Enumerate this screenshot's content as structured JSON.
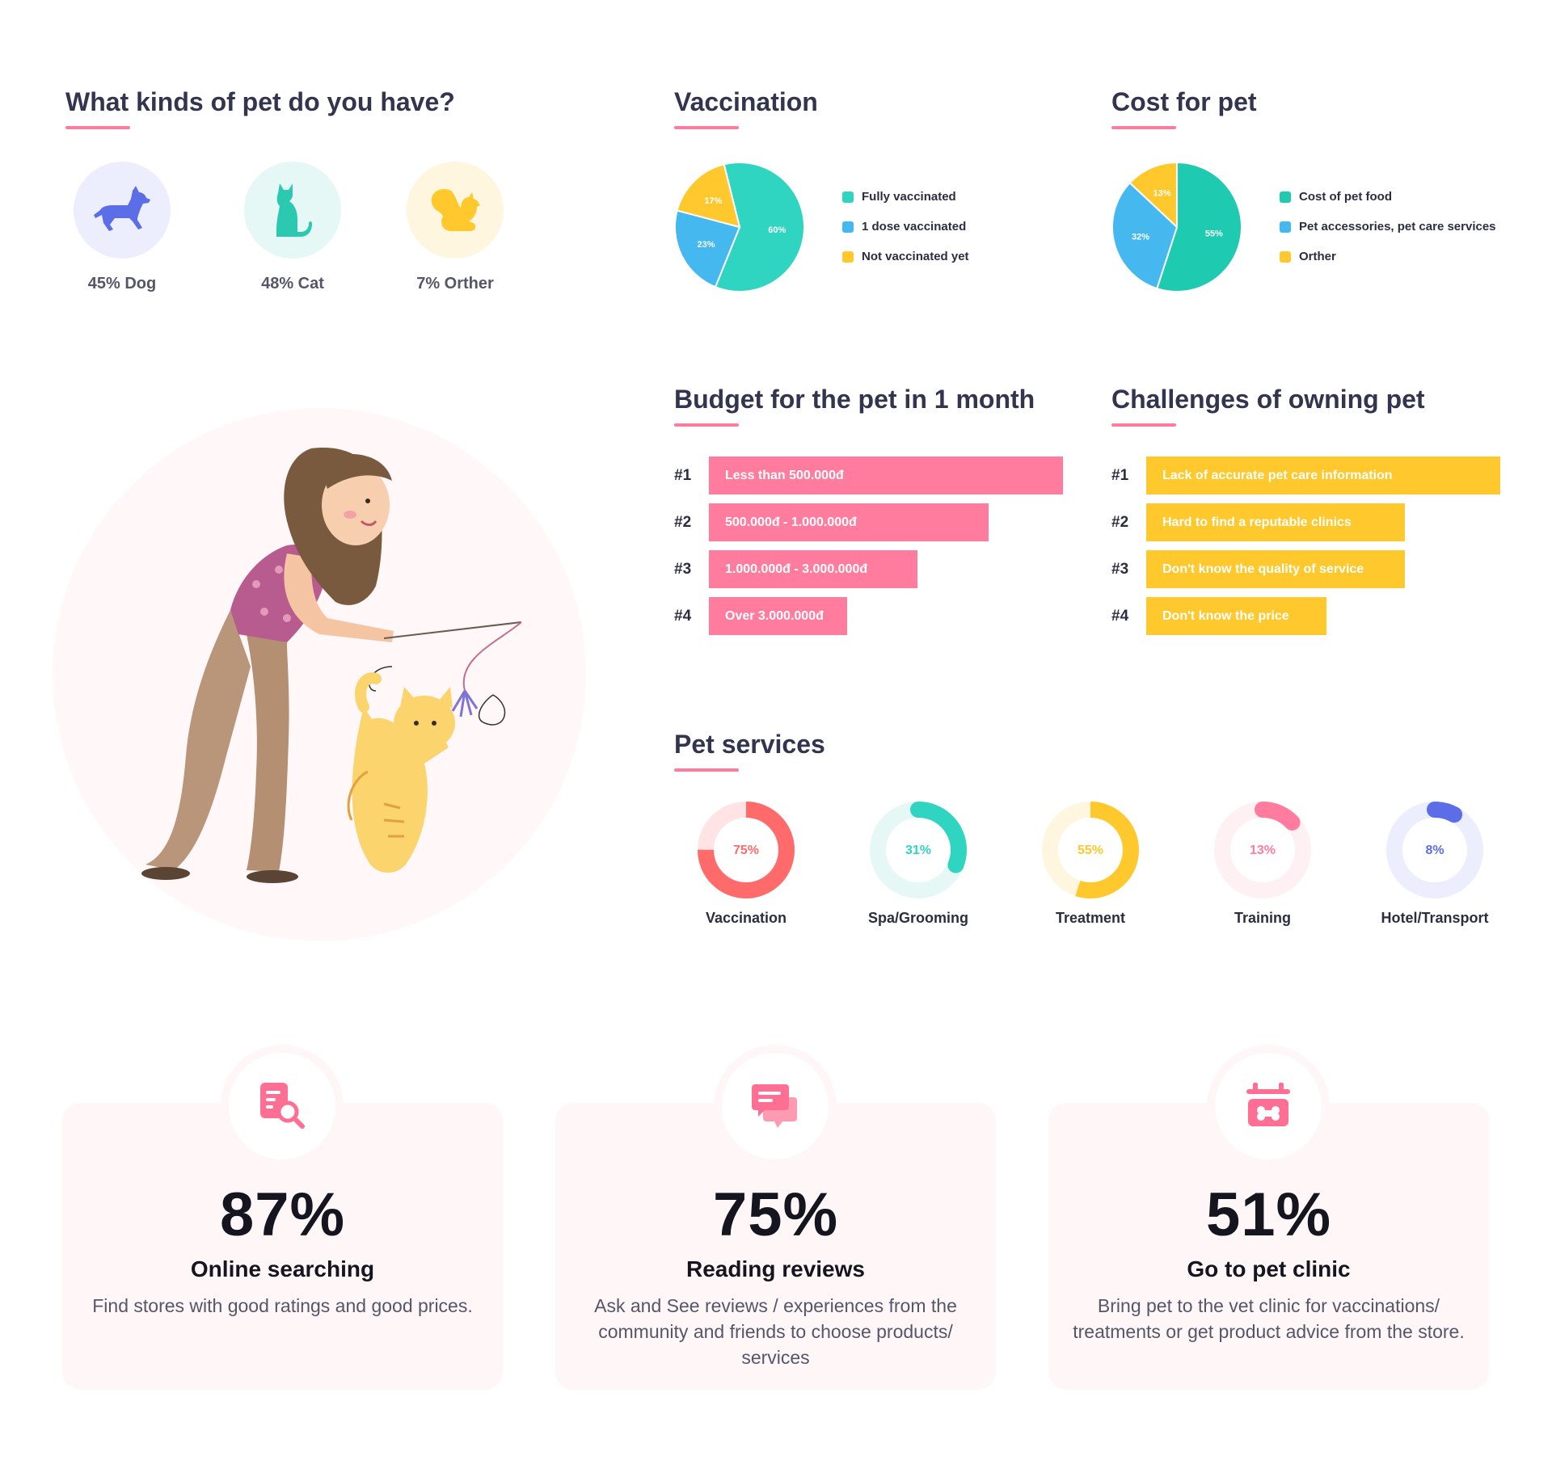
{
  "pet_kinds": {
    "title": "What kinds of pet do you have?",
    "items": [
      {
        "label": "45% Dog",
        "icon": "dog-icon",
        "bg": "#eceefe",
        "color": "#5b6ee8"
      },
      {
        "label": "48% Cat",
        "icon": "cat-icon",
        "bg": "#e6f8f5",
        "color": "#2ac9b0"
      },
      {
        "label": "7% Orther",
        "icon": "squirrel-icon",
        "bg": "#fff6df",
        "color": "#ffc82c"
      }
    ]
  },
  "vaccination": {
    "title": "Vaccination",
    "legend": [
      "Fully vaccinated",
      "1 dose vaccinated",
      "Not vaccinated yet"
    ]
  },
  "cost": {
    "title": "Cost for pet",
    "legend": [
      "Cost of pet food",
      "Pet accessories, pet care services",
      "Orther"
    ]
  },
  "budget": {
    "title": "Budget for the pet in 1 month"
  },
  "challenges": {
    "title": "Challenges of owning pet"
  },
  "services": {
    "title": "Pet services"
  },
  "colors": {
    "teal": "#2fd5c0",
    "blue": "#45b8f0",
    "yellow": "#ffc82c",
    "pink": "#ff7c9f",
    "accent": "#ff7c9f"
  },
  "chart_data": [
    {
      "type": "pie",
      "title": "Vaccination",
      "categories": [
        "Fully vaccinated",
        "1 dose vaccinated",
        "Not vaccinated yet"
      ],
      "values": [
        60,
        23,
        17
      ],
      "labels": [
        "60%",
        "23%",
        "17%"
      ],
      "colors": [
        "#2fd5c0",
        "#45b8f0",
        "#ffc82c"
      ],
      "legend": "right"
    },
    {
      "type": "pie",
      "title": "Cost for pet",
      "categories": [
        "Cost of pet food",
        "Pet accessories, pet care services",
        "Orther"
      ],
      "values": [
        55,
        32,
        13
      ],
      "labels": [
        "55%",
        "32%",
        "13%"
      ],
      "colors": [
        "#1ecbb0",
        "#45b8f0",
        "#ffc82c"
      ],
      "legend": "right"
    },
    {
      "type": "bar",
      "title": "Budget for the pet in 1 month",
      "categories": [
        "Less than 500.000đ",
        "500.000đ - 1.000.000đ",
        "1.000.000đ - 3.000.000đ",
        "Over 3.000.000đ"
      ],
      "ranks": [
        "#1",
        "#2",
        "#3",
        "#4"
      ],
      "values": [
        1.0,
        0.79,
        0.59,
        0.39
      ],
      "color": "#ff7c9f"
    },
    {
      "type": "bar",
      "title": "Challenges of owning pet",
      "categories": [
        "Lack of accurate pet care information",
        "Hard to find a reputable clinics",
        "Don't know the quality of service",
        "Don't know the price"
      ],
      "ranks": [
        "#1",
        "#2",
        "#3",
        "#4"
      ],
      "values": [
        1.0,
        0.73,
        0.73,
        0.51
      ],
      "color": "#ffc82c"
    },
    {
      "type": "pie",
      "title": "Pet services",
      "categories": [
        "Vaccination",
        "Spa/Grooming",
        "Treatment",
        "Training",
        "Hotel/Transport"
      ],
      "values": [
        75,
        31,
        55,
        13,
        8
      ],
      "labels": [
        "75%",
        "31%",
        "55%",
        "13%",
        "8%"
      ],
      "colors": [
        "#ff6b6b",
        "#2fd5c0",
        "#ffc82c",
        "#ff7c9f",
        "#5b6ee8"
      ],
      "tracks": [
        "#ffe3e5",
        "#e6f8f5",
        "#fff6df",
        "#fff0f3",
        "#eceefe"
      ]
    }
  ],
  "stats": [
    {
      "percent": "87%",
      "title": "Online searching",
      "desc": "Find stores with good ratings and good prices.",
      "icon": "document-search-icon"
    },
    {
      "percent": "75%",
      "title": "Reading reviews",
      "desc": "Ask and See reviews / experiences from the community and friends to choose products/ services",
      "icon": "chat-bubbles-icon"
    },
    {
      "percent": "51%",
      "title": "Go to pet clinic",
      "desc": "Bring pet to the vet clinic for vaccinations/ treatments or get product advice from the store.",
      "icon": "pet-clinic-icon"
    }
  ]
}
